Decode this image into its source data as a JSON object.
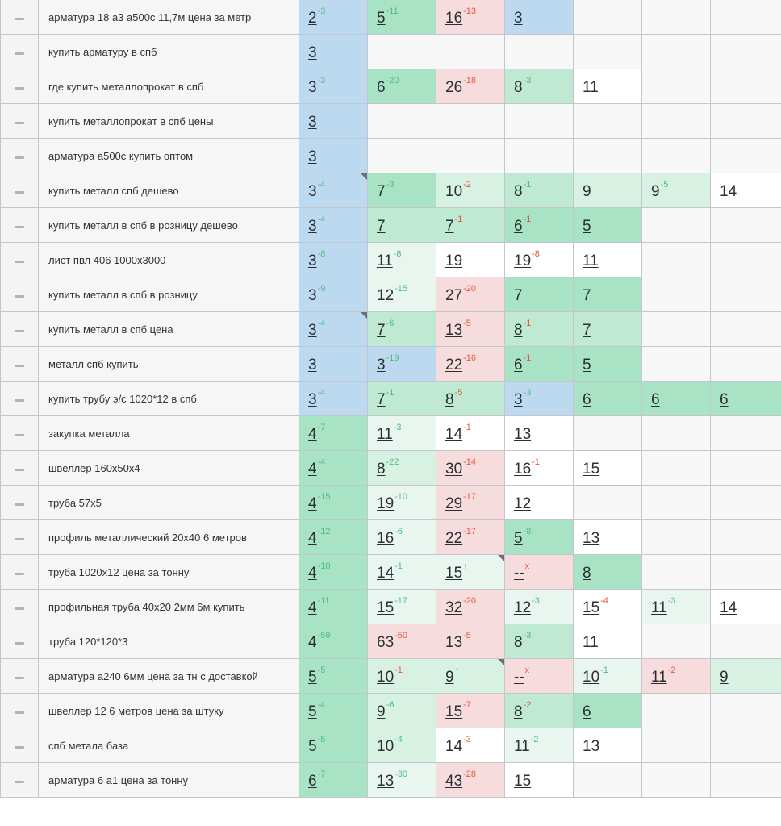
{
  "colors": {
    "blue": "#bcd9ef",
    "green_strong": "#a9e3c5",
    "green": "#bfe9d3",
    "green_light": "#d7f1e3",
    "green_pale": "#e8f6ef",
    "red_light": "#f6dcdc",
    "change_up": "#4cbd84",
    "change_down": "#e8553b"
  },
  "rows": [
    {
      "keyword": "арматура 18 а3 а500с 11,7м цена за метр",
      "cells": [
        {
          "v": "2",
          "d": "-3",
          "t": "up",
          "bg": "blue"
        },
        {
          "v": "5",
          "d": "-11",
          "t": "up",
          "bg": "g1"
        },
        {
          "v": "16",
          "d": "-13",
          "t": "down",
          "bg": "red"
        },
        {
          "v": "3",
          "bg": "blue"
        },
        null,
        null,
        null
      ]
    },
    {
      "keyword": "купить арматуру в спб",
      "cells": [
        {
          "v": "3",
          "bg": "blue"
        },
        null,
        null,
        null,
        null,
        null,
        null
      ]
    },
    {
      "keyword": "где купить металлопрокат в спб",
      "cells": [
        {
          "v": "3",
          "d": "-3",
          "t": "up",
          "bg": "blue"
        },
        {
          "v": "6",
          "d": "-20",
          "t": "up",
          "bg": "g1"
        },
        {
          "v": "26",
          "d": "-18",
          "t": "down",
          "bg": "red"
        },
        {
          "v": "8",
          "d": "-3",
          "t": "up",
          "bg": "g2"
        },
        {
          "v": "11",
          "bg": "white"
        },
        null,
        null
      ]
    },
    {
      "keyword": "купить металлопрокат в спб цены",
      "cells": [
        {
          "v": "3",
          "bg": "blue"
        },
        null,
        null,
        null,
        null,
        null,
        null
      ]
    },
    {
      "keyword": "арматура а500с купить оптом",
      "cells": [
        {
          "v": "3",
          "bg": "blue"
        },
        null,
        null,
        null,
        null,
        null,
        null
      ]
    },
    {
      "keyword": "купить металл спб дешево",
      "cells": [
        {
          "v": "3",
          "d": "-4",
          "t": "up",
          "bg": "blue",
          "fold": true
        },
        {
          "v": "7",
          "d": "-3",
          "t": "up",
          "bg": "g1"
        },
        {
          "v": "10",
          "d": "-2",
          "t": "down",
          "bg": "g3"
        },
        {
          "v": "8",
          "d": "-1",
          "t": "up",
          "bg": "g2"
        },
        {
          "v": "9",
          "bg": "g3"
        },
        {
          "v": "9",
          "d": "-5",
          "t": "up",
          "bg": "g3"
        },
        {
          "v": "14",
          "bg": "white"
        }
      ]
    },
    {
      "keyword": "купить металл в спб в розницу дешево",
      "cells": [
        {
          "v": "3",
          "d": "-4",
          "t": "up",
          "bg": "blue"
        },
        {
          "v": "7",
          "bg": "g2"
        },
        {
          "v": "7",
          "d": "-1",
          "t": "down",
          "bg": "g2"
        },
        {
          "v": "6",
          "d": "-1",
          "t": "down",
          "bg": "g1"
        },
        {
          "v": "5",
          "bg": "g1"
        },
        null,
        null
      ]
    },
    {
      "keyword": "лист пвл 406 1000х3000",
      "cells": [
        {
          "v": "3",
          "d": "-8",
          "t": "up",
          "bg": "blue"
        },
        {
          "v": "11",
          "d": "-8",
          "t": "up",
          "bg": "g4"
        },
        {
          "v": "19",
          "bg": "white"
        },
        {
          "v": "19",
          "d": "-8",
          "t": "down",
          "bg": "white"
        },
        {
          "v": "11",
          "bg": "white"
        },
        null,
        null
      ]
    },
    {
      "keyword": "купить металл в спб в розницу",
      "cells": [
        {
          "v": "3",
          "d": "-9",
          "t": "up",
          "bg": "blue"
        },
        {
          "v": "12",
          "d": "-15",
          "t": "up",
          "bg": "g4"
        },
        {
          "v": "27",
          "d": "-20",
          "t": "down",
          "bg": "red"
        },
        {
          "v": "7",
          "bg": "g1"
        },
        {
          "v": "7",
          "bg": "g1"
        },
        null,
        null
      ]
    },
    {
      "keyword": "купить металл в спб цена",
      "cells": [
        {
          "v": "3",
          "d": "-4",
          "t": "up",
          "bg": "blue",
          "fold": true
        },
        {
          "v": "7",
          "d": "-6",
          "t": "up",
          "bg": "g2"
        },
        {
          "v": "13",
          "d": "-5",
          "t": "down",
          "bg": "red"
        },
        {
          "v": "8",
          "d": "-1",
          "t": "down",
          "bg": "g2"
        },
        {
          "v": "7",
          "bg": "g2"
        },
        null,
        null
      ]
    },
    {
      "keyword": "металл спб купить",
      "cells": [
        {
          "v": "3",
          "bg": "blue"
        },
        {
          "v": "3",
          "d": "-19",
          "t": "up",
          "bg": "blue"
        },
        {
          "v": "22",
          "d": "-16",
          "t": "down",
          "bg": "red"
        },
        {
          "v": "6",
          "d": "-1",
          "t": "down",
          "bg": "g1"
        },
        {
          "v": "5",
          "bg": "g1"
        },
        null,
        null
      ]
    },
    {
      "keyword": "купить трубу э/с 1020*12 в спб",
      "cells": [
        {
          "v": "3",
          "d": "-4",
          "t": "up",
          "bg": "blue"
        },
        {
          "v": "7",
          "d": "-1",
          "t": "up",
          "bg": "g2"
        },
        {
          "v": "8",
          "d": "-5",
          "t": "down",
          "bg": "g2"
        },
        {
          "v": "3",
          "d": "-3",
          "t": "up",
          "bg": "blue"
        },
        {
          "v": "6",
          "bg": "g1"
        },
        {
          "v": "6",
          "bg": "g1"
        },
        {
          "v": "6",
          "bg": "g1"
        }
      ]
    },
    {
      "keyword": "закупка металла",
      "cells": [
        {
          "v": "4",
          "d": "-7",
          "t": "up",
          "bg": "g1"
        },
        {
          "v": "11",
          "d": "-3",
          "t": "up",
          "bg": "g4"
        },
        {
          "v": "14",
          "d": "-1",
          "t": "down",
          "bg": "white"
        },
        {
          "v": "13",
          "bg": "white"
        },
        null,
        null,
        null
      ]
    },
    {
      "keyword": "швеллер 160х50х4",
      "cells": [
        {
          "v": "4",
          "d": "-4",
          "t": "up",
          "bg": "g1"
        },
        {
          "v": "8",
          "d": "-22",
          "t": "up",
          "bg": "g3"
        },
        {
          "v": "30",
          "d": "-14",
          "t": "down",
          "bg": "red"
        },
        {
          "v": "16",
          "d": "-1",
          "t": "down",
          "bg": "white"
        },
        {
          "v": "15",
          "bg": "white"
        },
        null,
        null
      ]
    },
    {
      "keyword": "труба 57х5",
      "cells": [
        {
          "v": "4",
          "d": "-15",
          "t": "up",
          "bg": "g1"
        },
        {
          "v": "19",
          "d": "-10",
          "t": "up",
          "bg": "g4"
        },
        {
          "v": "29",
          "d": "-17",
          "t": "down",
          "bg": "red"
        },
        {
          "v": "12",
          "bg": "white"
        },
        null,
        null,
        null
      ]
    },
    {
      "keyword": "профиль металлический 20х40 6 метров",
      "cells": [
        {
          "v": "4",
          "d": "-12",
          "t": "up",
          "bg": "g1"
        },
        {
          "v": "16",
          "d": "-6",
          "t": "up",
          "bg": "g4"
        },
        {
          "v": "22",
          "d": "-17",
          "t": "down",
          "bg": "red"
        },
        {
          "v": "5",
          "d": "-8",
          "t": "up",
          "bg": "g1"
        },
        {
          "v": "13",
          "bg": "white"
        },
        null,
        null
      ]
    },
    {
      "keyword": "труба 1020х12 цена за тонну",
      "cells": [
        {
          "v": "4",
          "d": "-10",
          "t": "up",
          "bg": "g1"
        },
        {
          "v": "14",
          "d": "-1",
          "t": "up",
          "bg": "g4"
        },
        {
          "v": "15",
          "d": "↑",
          "t": "up",
          "bg": "g4",
          "fold": true
        },
        {
          "v": "--",
          "d": "x",
          "t": "down",
          "bg": "red"
        },
        {
          "v": "8",
          "bg": "g1"
        },
        null,
        null
      ]
    },
    {
      "keyword": "профильная труба 40х20 2мм 6м купить",
      "cells": [
        {
          "v": "4",
          "d": "-11",
          "t": "up",
          "bg": "g1"
        },
        {
          "v": "15",
          "d": "-17",
          "t": "up",
          "bg": "g4"
        },
        {
          "v": "32",
          "d": "-20",
          "t": "down",
          "bg": "red"
        },
        {
          "v": "12",
          "d": "-3",
          "t": "up",
          "bg": "g4"
        },
        {
          "v": "15",
          "d": "-4",
          "t": "down",
          "bg": "white"
        },
        {
          "v": "11",
          "d": "-3",
          "t": "up",
          "bg": "g4"
        },
        {
          "v": "14",
          "bg": "white"
        }
      ]
    },
    {
      "keyword": "труба 120*120*3",
      "cells": [
        {
          "v": "4",
          "d": "-59",
          "t": "up",
          "bg": "g1"
        },
        {
          "v": "63",
          "d": "-50",
          "t": "down",
          "bg": "red"
        },
        {
          "v": "13",
          "d": "-5",
          "t": "down",
          "bg": "red"
        },
        {
          "v": "8",
          "d": "-3",
          "t": "up",
          "bg": "g2"
        },
        {
          "v": "11",
          "bg": "white"
        },
        null,
        null
      ]
    },
    {
      "keyword": "арматура а240 6мм цена за тн с доставкой",
      "cells": [
        {
          "v": "5",
          "d": "-5",
          "t": "up",
          "bg": "g1"
        },
        {
          "v": "10",
          "d": "-1",
          "t": "down",
          "bg": "g3"
        },
        {
          "v": "9",
          "d": "↑",
          "t": "up",
          "bg": "g3",
          "fold": true
        },
        {
          "v": "--",
          "d": "x",
          "t": "down",
          "bg": "red"
        },
        {
          "v": "10",
          "d": "-1",
          "t": "up",
          "bg": "g4"
        },
        {
          "v": "11",
          "d": "-2",
          "t": "down",
          "bg": "red"
        },
        {
          "v": "9",
          "bg": "g3"
        }
      ]
    },
    {
      "keyword": "швеллер 12 6 метров цена за штуку",
      "cells": [
        {
          "v": "5",
          "d": "-4",
          "t": "up",
          "bg": "g1"
        },
        {
          "v": "9",
          "d": "-6",
          "t": "up",
          "bg": "g3"
        },
        {
          "v": "15",
          "d": "-7",
          "t": "down",
          "bg": "red"
        },
        {
          "v": "8",
          "d": "-2",
          "t": "down",
          "bg": "g2"
        },
        {
          "v": "6",
          "bg": "g1"
        },
        null,
        null
      ]
    },
    {
      "keyword": "спб метала база",
      "cells": [
        {
          "v": "5",
          "d": "-5",
          "t": "up",
          "bg": "g1"
        },
        {
          "v": "10",
          "d": "-4",
          "t": "up",
          "bg": "g3"
        },
        {
          "v": "14",
          "d": "-3",
          "t": "down",
          "bg": "white"
        },
        {
          "v": "11",
          "d": "-2",
          "t": "up",
          "bg": "g4"
        },
        {
          "v": "13",
          "bg": "white"
        },
        null,
        null
      ]
    },
    {
      "keyword": "арматура 6 а1 цена за тонну",
      "cells": [
        {
          "v": "6",
          "d": "-7",
          "t": "up",
          "bg": "g1"
        },
        {
          "v": "13",
          "d": "-30",
          "t": "up",
          "bg": "g4"
        },
        {
          "v": "43",
          "d": "-28",
          "t": "down",
          "bg": "red"
        },
        {
          "v": "15",
          "bg": "white"
        },
        null,
        null,
        null
      ]
    }
  ]
}
